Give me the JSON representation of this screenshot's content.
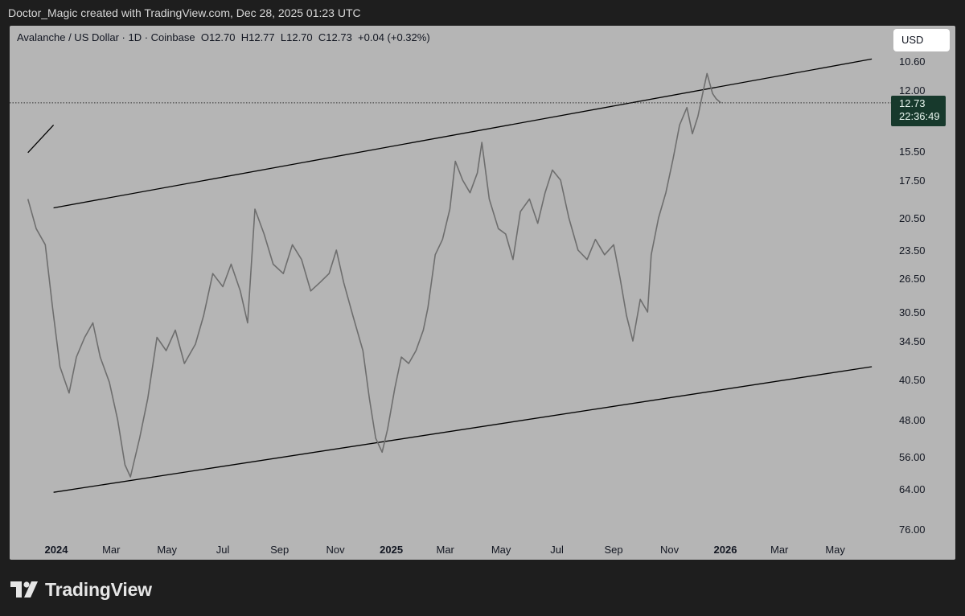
{
  "header": {
    "caption": "Doctor_Magic created with TradingView.com, Dec 28, 2025 01:23 UTC"
  },
  "legend": {
    "symbol": "Avalanche / US Dollar · 1D · Coinbase",
    "open": "O12.70",
    "high": "H12.77",
    "low": "L12.70",
    "close": "C12.73",
    "change": "+0.04 (+0.32%)"
  },
  "toolbar": {
    "currency_label": "USD"
  },
  "price_tag": {
    "price": "12.73",
    "countdown": "22:36:49"
  },
  "brand": {
    "name": "TradingView",
    "logo_icon": "tradingview-logo-icon"
  },
  "colors": {
    "panel_bg": "#b5b5b5",
    "page_bg": "#1e1e1e",
    "price_series": "#6e6e6e",
    "trendline": "#000000",
    "price_tag_bg": "#17392c"
  },
  "chart_data": {
    "type": "line",
    "y_axis": {
      "inverted": true,
      "ticks": [
        "10.60",
        "12.00",
        "15.50",
        "17.50",
        "20.50",
        "23.50",
        "26.50",
        "30.50",
        "34.50",
        "40.50",
        "48.00",
        "56.00",
        "64.00",
        "76.00"
      ]
    },
    "x_axis": {
      "ticks": [
        {
          "label": "2024",
          "date": "2024-01-01",
          "bold": true
        },
        {
          "label": "Mar",
          "date": "2024-03-01",
          "bold": false
        },
        {
          "label": "May",
          "date": "2024-05-01",
          "bold": false
        },
        {
          "label": "Jul",
          "date": "2024-07-01",
          "bold": false
        },
        {
          "label": "Sep",
          "date": "2024-09-01",
          "bold": false
        },
        {
          "label": "Nov",
          "date": "2024-11-01",
          "bold": false
        },
        {
          "label": "2025",
          "date": "2025-01-01",
          "bold": true
        },
        {
          "label": "Mar",
          "date": "2025-03-01",
          "bold": false
        },
        {
          "label": "May",
          "date": "2025-05-01",
          "bold": false
        },
        {
          "label": "Jul",
          "date": "2025-07-01",
          "bold": false
        },
        {
          "label": "Sep",
          "date": "2025-09-01",
          "bold": false
        },
        {
          "label": "Nov",
          "date": "2025-11-01",
          "bold": false
        },
        {
          "label": "2026",
          "date": "2026-01-01",
          "bold": true
        },
        {
          "label": "Mar",
          "date": "2026-03-01",
          "bold": false
        },
        {
          "label": "May",
          "date": "2026-05-01",
          "bold": false
        }
      ]
    },
    "series": [
      {
        "points": [
          [
            "2023-12-01",
            19.0
          ],
          [
            "2023-12-10",
            21.5
          ],
          [
            "2023-12-20",
            23.0
          ],
          [
            "2023-12-28",
            30.0
          ],
          [
            "2024-01-05",
            38.5
          ],
          [
            "2024-01-15",
            43.0
          ],
          [
            "2024-01-23",
            37.0
          ],
          [
            "2024-02-01",
            34.0
          ],
          [
            "2024-02-10",
            32.0
          ],
          [
            "2024-02-18",
            37.0
          ],
          [
            "2024-02-28",
            41.0
          ],
          [
            "2024-03-08",
            48.0
          ],
          [
            "2024-03-16",
            58.0
          ],
          [
            "2024-03-22",
            61.0
          ],
          [
            "2024-04-01",
            52.0
          ],
          [
            "2024-04-10",
            44.0
          ],
          [
            "2024-04-20",
            34.0
          ],
          [
            "2024-04-30",
            36.0
          ],
          [
            "2024-05-10",
            33.0
          ],
          [
            "2024-05-20",
            38.0
          ],
          [
            "2024-06-01",
            35.0
          ],
          [
            "2024-06-10",
            31.0
          ],
          [
            "2024-06-20",
            26.0
          ],
          [
            "2024-07-01",
            27.5
          ],
          [
            "2024-07-10",
            25.0
          ],
          [
            "2024-07-20",
            28.0
          ],
          [
            "2024-07-28",
            32.0
          ],
          [
            "2024-08-05",
            19.8
          ],
          [
            "2024-08-15",
            22.0
          ],
          [
            "2024-08-25",
            25.0
          ],
          [
            "2024-09-05",
            26.0
          ],
          [
            "2024-09-15",
            23.0
          ],
          [
            "2024-09-25",
            24.5
          ],
          [
            "2024-10-05",
            28.0
          ],
          [
            "2024-10-15",
            27.0
          ],
          [
            "2024-10-25",
            26.0
          ],
          [
            "2024-11-02",
            23.5
          ],
          [
            "2024-11-10",
            27.0
          ],
          [
            "2024-11-20",
            31.0
          ],
          [
            "2024-12-01",
            36.0
          ],
          [
            "2024-12-08",
            44.0
          ],
          [
            "2024-12-15",
            52.0
          ],
          [
            "2024-12-22",
            55.0
          ],
          [
            "2024-12-28",
            50.0
          ],
          [
            "2025-01-05",
            42.0
          ],
          [
            "2025-01-12",
            37.0
          ],
          [
            "2025-01-20",
            38.0
          ],
          [
            "2025-01-28",
            36.0
          ],
          [
            "2025-02-05",
            33.0
          ],
          [
            "2025-02-10",
            30.0
          ],
          [
            "2025-02-18",
            24.0
          ],
          [
            "2025-02-26",
            22.5
          ],
          [
            "2025-03-06",
            19.8
          ],
          [
            "2025-03-12",
            16.2
          ],
          [
            "2025-03-20",
            17.5
          ],
          [
            "2025-03-28",
            18.5
          ],
          [
            "2025-04-05",
            17.0
          ],
          [
            "2025-04-10",
            15.0
          ],
          [
            "2025-04-18",
            19.0
          ],
          [
            "2025-04-28",
            21.5
          ],
          [
            "2025-05-06",
            22.0
          ],
          [
            "2025-05-14",
            24.5
          ],
          [
            "2025-05-22",
            20.0
          ],
          [
            "2025-06-01",
            19.0
          ],
          [
            "2025-06-10",
            21.0
          ],
          [
            "2025-06-18",
            18.5
          ],
          [
            "2025-06-26",
            16.8
          ],
          [
            "2025-07-05",
            17.5
          ],
          [
            "2025-07-14",
            20.5
          ],
          [
            "2025-07-24",
            23.5
          ],
          [
            "2025-08-03",
            24.5
          ],
          [
            "2025-08-12",
            22.5
          ],
          [
            "2025-08-22",
            24.0
          ],
          [
            "2025-09-01",
            23.0
          ],
          [
            "2025-09-08",
            26.5
          ],
          [
            "2025-09-15",
            31.0
          ],
          [
            "2025-09-22",
            34.5
          ],
          [
            "2025-09-30",
            29.0
          ],
          [
            "2025-10-08",
            30.5
          ],
          [
            "2025-10-12",
            24.0
          ],
          [
            "2025-10-20",
            20.5
          ],
          [
            "2025-10-28",
            18.5
          ],
          [
            "2025-11-05",
            16.0
          ],
          [
            "2025-11-12",
            14.0
          ],
          [
            "2025-11-20",
            13.0
          ],
          [
            "2025-11-26",
            14.5
          ],
          [
            "2025-12-02",
            13.5
          ],
          [
            "2025-12-08",
            12.0
          ],
          [
            "2025-12-12",
            11.2
          ],
          [
            "2025-12-18",
            12.2
          ],
          [
            "2025-12-22",
            12.5
          ],
          [
            "2025-12-27",
            12.73
          ]
        ]
      }
    ],
    "trendlines": [
      {
        "from": [
          "2023-12-01",
          15.6
        ],
        "to": [
          "2023-12-29",
          14.0
        ]
      },
      {
        "from": [
          "2023-12-29",
          19.7
        ],
        "to": [
          "2026-06-10",
          10.5
        ]
      },
      {
        "from": [
          "2023-12-29",
          65.0
        ],
        "to": [
          "2026-06-10",
          38.5
        ]
      }
    ],
    "last_price_line": 12.73,
    "grid": false,
    "legend_position": "top-left"
  }
}
